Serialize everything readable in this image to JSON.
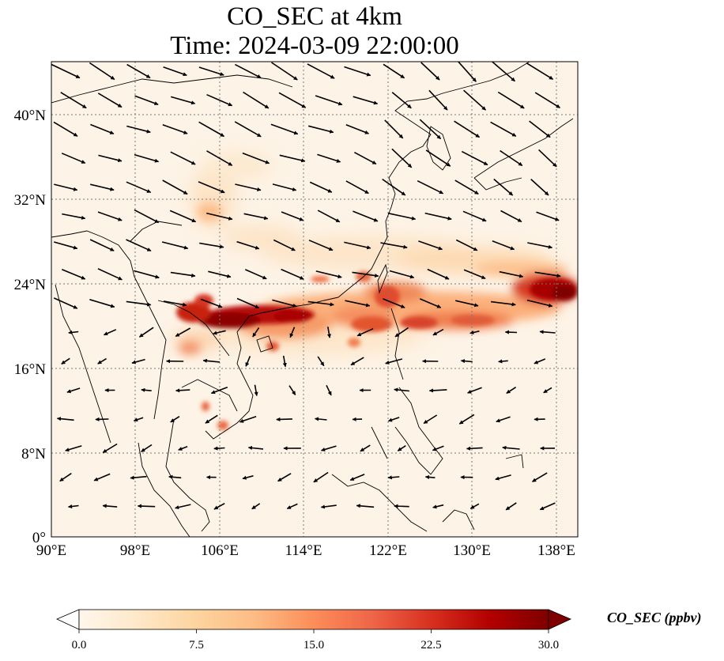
{
  "title": {
    "line1": "CO_SEC at 4km",
    "line2": "Time: 2024-03-09 22:00:00"
  },
  "map": {
    "lon_range": [
      90,
      140
    ],
    "lat_range": [
      0,
      45
    ],
    "gridlines": true,
    "wind_vectors": true,
    "lon_ticks": [
      {
        "value": 90,
        "label": "90°E"
      },
      {
        "value": 98,
        "label": "98°E"
      },
      {
        "value": 106,
        "label": "106°E"
      },
      {
        "value": 114,
        "label": "114°E"
      },
      {
        "value": 122,
        "label": "122°E"
      },
      {
        "value": 130,
        "label": "130°E"
      },
      {
        "value": 138,
        "label": "138°E"
      }
    ],
    "lat_ticks": [
      {
        "value": 0,
        "label": "0°"
      },
      {
        "value": 8,
        "label": "8°N"
      },
      {
        "value": 16,
        "label": "16°N"
      },
      {
        "value": 24,
        "label": "24°N"
      },
      {
        "value": 32,
        "label": "32°N"
      },
      {
        "value": 40,
        "label": "40°N"
      }
    ]
  },
  "colorbar": {
    "label": "CO_SEC (ppbv)",
    "min": 0.0,
    "max": 30.0,
    "extend": "both",
    "colormap": "OrRd",
    "ticks": [
      "0.0",
      "7.5",
      "15.0",
      "22.5",
      "30.0"
    ],
    "colors": [
      "#fff7ec",
      "#fee8c8",
      "#fdd49e",
      "#fdbb84",
      "#fc8d59",
      "#ef6548",
      "#d7301f",
      "#b30000",
      "#7f0000"
    ]
  }
}
